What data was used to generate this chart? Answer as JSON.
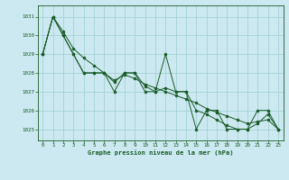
{
  "title": "Graphe pression niveau de la mer (hPa)",
  "bg_color": "#cce8f0",
  "grid_color": "#9ecece",
  "line_color": "#1a5c28",
  "xlim": [
    -0.5,
    23.5
  ],
  "ylim": [
    1024.4,
    1031.6
  ],
  "yticks": [
    1025,
    1026,
    1027,
    1028,
    1029,
    1030,
    1031
  ],
  "xticks": [
    0,
    1,
    2,
    3,
    4,
    5,
    6,
    7,
    8,
    9,
    10,
    11,
    12,
    13,
    14,
    15,
    16,
    17,
    18,
    19,
    20,
    21,
    22,
    23
  ],
  "s1": [
    1029.0,
    1031.0,
    1030.0,
    1029.0,
    1028.0,
    1028.0,
    1028.0,
    1027.0,
    1028.0,
    1028.0,
    1027.0,
    1027.0,
    1029.0,
    1027.0,
    1027.0,
    1025.0,
    1026.0,
    1026.0,
    1025.0,
    1025.0,
    1025.0,
    1026.0,
    1026.0,
    1025.0
  ],
  "s2": [
    1029.0,
    1031.0,
    1030.0,
    1029.0,
    1028.0,
    1028.0,
    1028.0,
    1027.5,
    1028.0,
    1028.0,
    1027.3,
    1027.0,
    1027.2,
    1027.0,
    1027.0,
    1026.0,
    1025.8,
    1025.5,
    1025.2,
    1025.0,
    1025.0,
    1025.3,
    1025.8,
    1025.0
  ],
  "s3": [
    1029.0,
    1031.0,
    1030.2,
    1029.3,
    1028.8,
    1028.4,
    1028.0,
    1027.6,
    1027.9,
    1027.7,
    1027.4,
    1027.2,
    1027.0,
    1026.8,
    1026.6,
    1026.4,
    1026.1,
    1025.9,
    1025.7,
    1025.5,
    1025.3,
    1025.4,
    1025.5,
    1025.0
  ]
}
